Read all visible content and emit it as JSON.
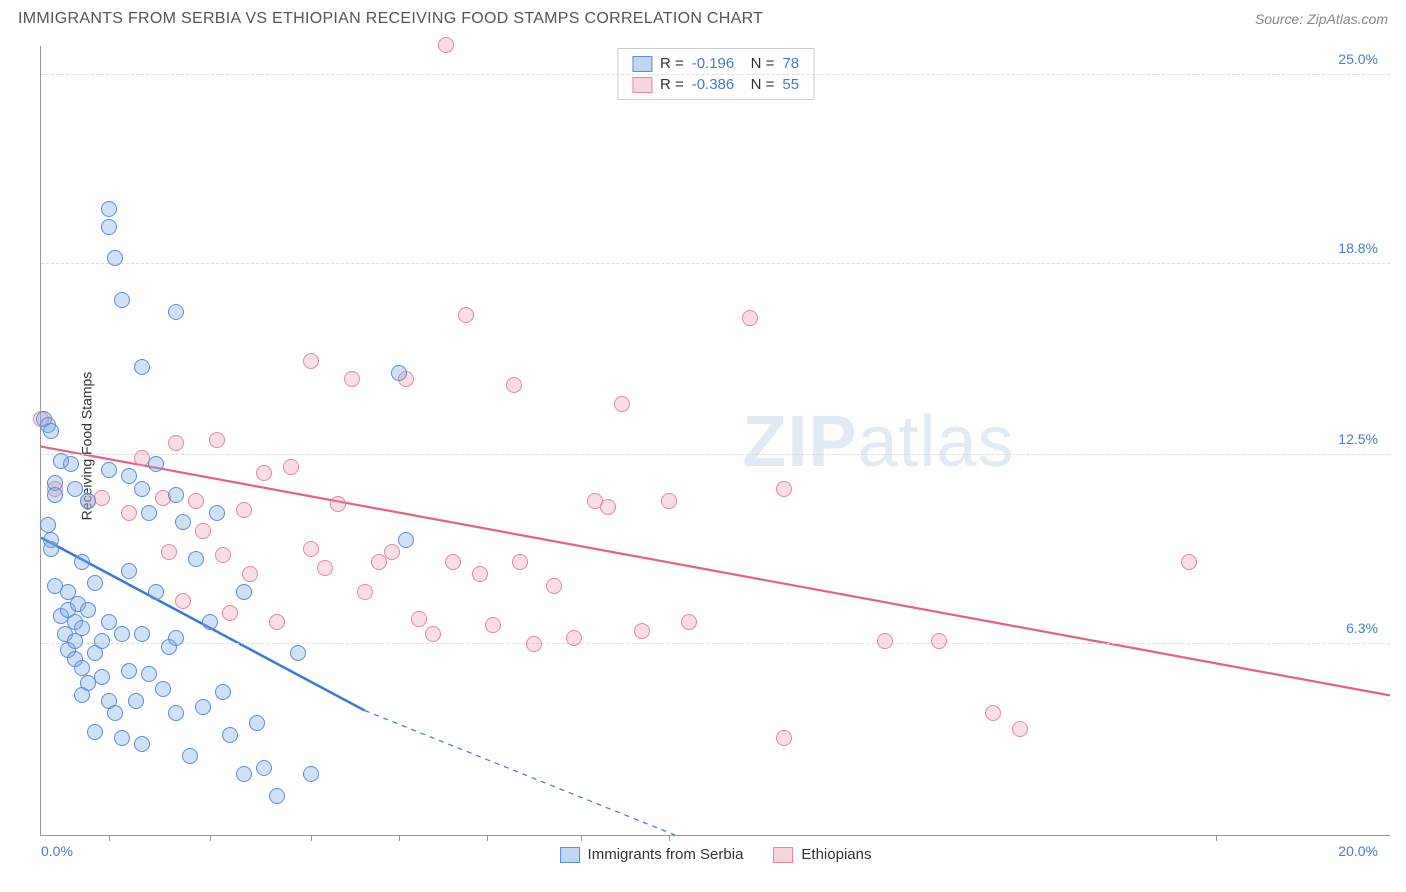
{
  "header": {
    "title": "IMMIGRANTS FROM SERBIA VS ETHIOPIAN RECEIVING FOOD STAMPS CORRELATION CHART",
    "source": "Source: ZipAtlas.com"
  },
  "watermark": {
    "zip": "ZIP",
    "atlas": "atlas"
  },
  "chart": {
    "type": "scatter",
    "y_axis_label": "Receiving Food Stamps",
    "xlim": [
      0,
      20
    ],
    "ylim": [
      0,
      26
    ],
    "x_origin_label": "0.0%",
    "x_end_label": "20.0%",
    "y_ticks": [
      {
        "v": 6.3,
        "label": "6.3%"
      },
      {
        "v": 12.5,
        "label": "12.5%"
      },
      {
        "v": 18.8,
        "label": "18.8%"
      },
      {
        "v": 25.0,
        "label": "25.0%"
      }
    ],
    "x_tick_positions": [
      1.0,
      2.5,
      4.0,
      5.3,
      6.6,
      8.0,
      9.3,
      17.4
    ],
    "grid_color": "#dddddd",
    "axis_color": "#999999",
    "background_color": "#ffffff",
    "label_color": "#4a7bd0",
    "title_color": "#555555",
    "title_fontsize": 16,
    "label_fontsize": 14,
    "series": {
      "blue": {
        "name": "Immigrants from Serbia",
        "R": "-0.196",
        "N": "78",
        "fill": "rgba(120,165,225,0.35)",
        "stroke": "#5a8fd8",
        "marker_radius": 8,
        "trend": {
          "x1": 0.0,
          "y1": 9.8,
          "x2": 4.8,
          "y2": 4.1,
          "dash_to_x": 9.4,
          "dash_to_y": 0.0,
          "color": "#3b78d6",
          "width": 2.5
        },
        "points": [
          [
            0.05,
            13.7
          ],
          [
            0.1,
            13.5
          ],
          [
            0.1,
            10.2
          ],
          [
            0.15,
            9.7
          ],
          [
            0.15,
            9.4
          ],
          [
            0.2,
            11.6
          ],
          [
            0.2,
            11.2
          ],
          [
            0.2,
            8.2
          ],
          [
            0.3,
            12.3
          ],
          [
            0.3,
            7.2
          ],
          [
            0.35,
            6.6
          ],
          [
            0.4,
            8.0
          ],
          [
            0.4,
            7.4
          ],
          [
            0.4,
            6.1
          ],
          [
            0.45,
            12.2
          ],
          [
            0.5,
            11.4
          ],
          [
            0.5,
            7.0
          ],
          [
            0.5,
            6.4
          ],
          [
            0.5,
            5.8
          ],
          [
            0.55,
            7.6
          ],
          [
            0.6,
            9.0
          ],
          [
            0.6,
            6.8
          ],
          [
            0.6,
            5.5
          ],
          [
            0.6,
            4.6
          ],
          [
            0.7,
            11.0
          ],
          [
            0.7,
            7.4
          ],
          [
            0.7,
            5.0
          ],
          [
            0.8,
            8.3
          ],
          [
            0.8,
            6.0
          ],
          [
            0.8,
            3.4
          ],
          [
            0.9,
            6.4
          ],
          [
            0.9,
            5.2
          ],
          [
            1.0,
            20.6
          ],
          [
            1.0,
            20.0
          ],
          [
            1.0,
            12.0
          ],
          [
            1.0,
            7.0
          ],
          [
            1.0,
            4.4
          ],
          [
            1.1,
            19.0
          ],
          [
            1.1,
            4.0
          ],
          [
            1.2,
            17.6
          ],
          [
            1.2,
            6.6
          ],
          [
            1.2,
            3.2
          ],
          [
            1.3,
            11.8
          ],
          [
            1.3,
            8.7
          ],
          [
            1.3,
            5.4
          ],
          [
            1.4,
            4.4
          ],
          [
            1.5,
            15.4
          ],
          [
            1.5,
            11.4
          ],
          [
            1.5,
            6.6
          ],
          [
            1.5,
            3.0
          ],
          [
            1.6,
            10.6
          ],
          [
            1.6,
            5.3
          ],
          [
            1.7,
            12.2
          ],
          [
            1.7,
            8.0
          ],
          [
            1.8,
            4.8
          ],
          [
            1.9,
            6.2
          ],
          [
            2.0,
            17.2
          ],
          [
            2.0,
            11.2
          ],
          [
            2.0,
            6.5
          ],
          [
            2.0,
            4.0
          ],
          [
            2.1,
            10.3
          ],
          [
            2.2,
            2.6
          ],
          [
            2.3,
            9.1
          ],
          [
            2.4,
            4.2
          ],
          [
            2.5,
            7.0
          ],
          [
            2.6,
            10.6
          ],
          [
            2.7,
            4.7
          ],
          [
            2.8,
            3.3
          ],
          [
            3.0,
            8.0
          ],
          [
            3.0,
            2.0
          ],
          [
            3.2,
            3.7
          ],
          [
            3.3,
            2.2
          ],
          [
            3.5,
            1.3
          ],
          [
            3.8,
            6.0
          ],
          [
            4.0,
            2.0
          ],
          [
            5.3,
            15.2
          ],
          [
            5.4,
            9.7
          ],
          [
            0.15,
            13.3
          ]
        ]
      },
      "pink": {
        "name": "Ethiopians",
        "R": "-0.386",
        "N": "55",
        "fill": "rgba(235,150,170,0.3)",
        "stroke": "#e6879f",
        "marker_radius": 8,
        "trend": {
          "x1": 0.0,
          "y1": 12.8,
          "x2": 20.0,
          "y2": 4.6,
          "color": "#e6607f",
          "width": 2.2
        },
        "points": [
          [
            0.0,
            13.7
          ],
          [
            0.2,
            11.4
          ],
          [
            0.7,
            11.0
          ],
          [
            0.9,
            11.1
          ],
          [
            1.3,
            10.6
          ],
          [
            1.5,
            12.4
          ],
          [
            1.8,
            11.1
          ],
          [
            1.9,
            9.3
          ],
          [
            2.0,
            12.9
          ],
          [
            2.3,
            11.0
          ],
          [
            2.4,
            10.0
          ],
          [
            2.6,
            13.0
          ],
          [
            2.7,
            9.2
          ],
          [
            2.8,
            7.3
          ],
          [
            3.0,
            10.7
          ],
          [
            3.1,
            8.6
          ],
          [
            3.3,
            11.9
          ],
          [
            3.5,
            7.0
          ],
          [
            3.7,
            12.1
          ],
          [
            4.0,
            15.6
          ],
          [
            4.0,
            9.4
          ],
          [
            4.2,
            8.8
          ],
          [
            4.4,
            10.9
          ],
          [
            4.6,
            15.0
          ],
          [
            4.8,
            8.0
          ],
          [
            5.0,
            9.0
          ],
          [
            5.2,
            9.3
          ],
          [
            5.4,
            15.0
          ],
          [
            5.6,
            7.1
          ],
          [
            5.8,
            6.6
          ],
          [
            6.0,
            26.0
          ],
          [
            6.1,
            9.0
          ],
          [
            6.3,
            17.1
          ],
          [
            6.5,
            8.6
          ],
          [
            6.7,
            6.9
          ],
          [
            7.0,
            14.8
          ],
          [
            7.1,
            9.0
          ],
          [
            7.3,
            6.3
          ],
          [
            7.6,
            8.2
          ],
          [
            7.9,
            6.5
          ],
          [
            8.2,
            11.0
          ],
          [
            8.4,
            10.8
          ],
          [
            8.6,
            14.2
          ],
          [
            8.9,
            6.7
          ],
          [
            9.3,
            11.0
          ],
          [
            9.6,
            7.0
          ],
          [
            10.5,
            17.0
          ],
          [
            11.0,
            11.4
          ],
          [
            11.0,
            3.2
          ],
          [
            12.5,
            6.4
          ],
          [
            13.3,
            6.4
          ],
          [
            14.1,
            4.0
          ],
          [
            14.5,
            3.5
          ],
          [
            17.0,
            9.0
          ],
          [
            2.1,
            7.7
          ]
        ]
      }
    },
    "legend_bottom": [
      {
        "swatch": "blue",
        "label": "Immigrants from Serbia"
      },
      {
        "swatch": "pink",
        "label": "Ethiopians"
      }
    ]
  }
}
